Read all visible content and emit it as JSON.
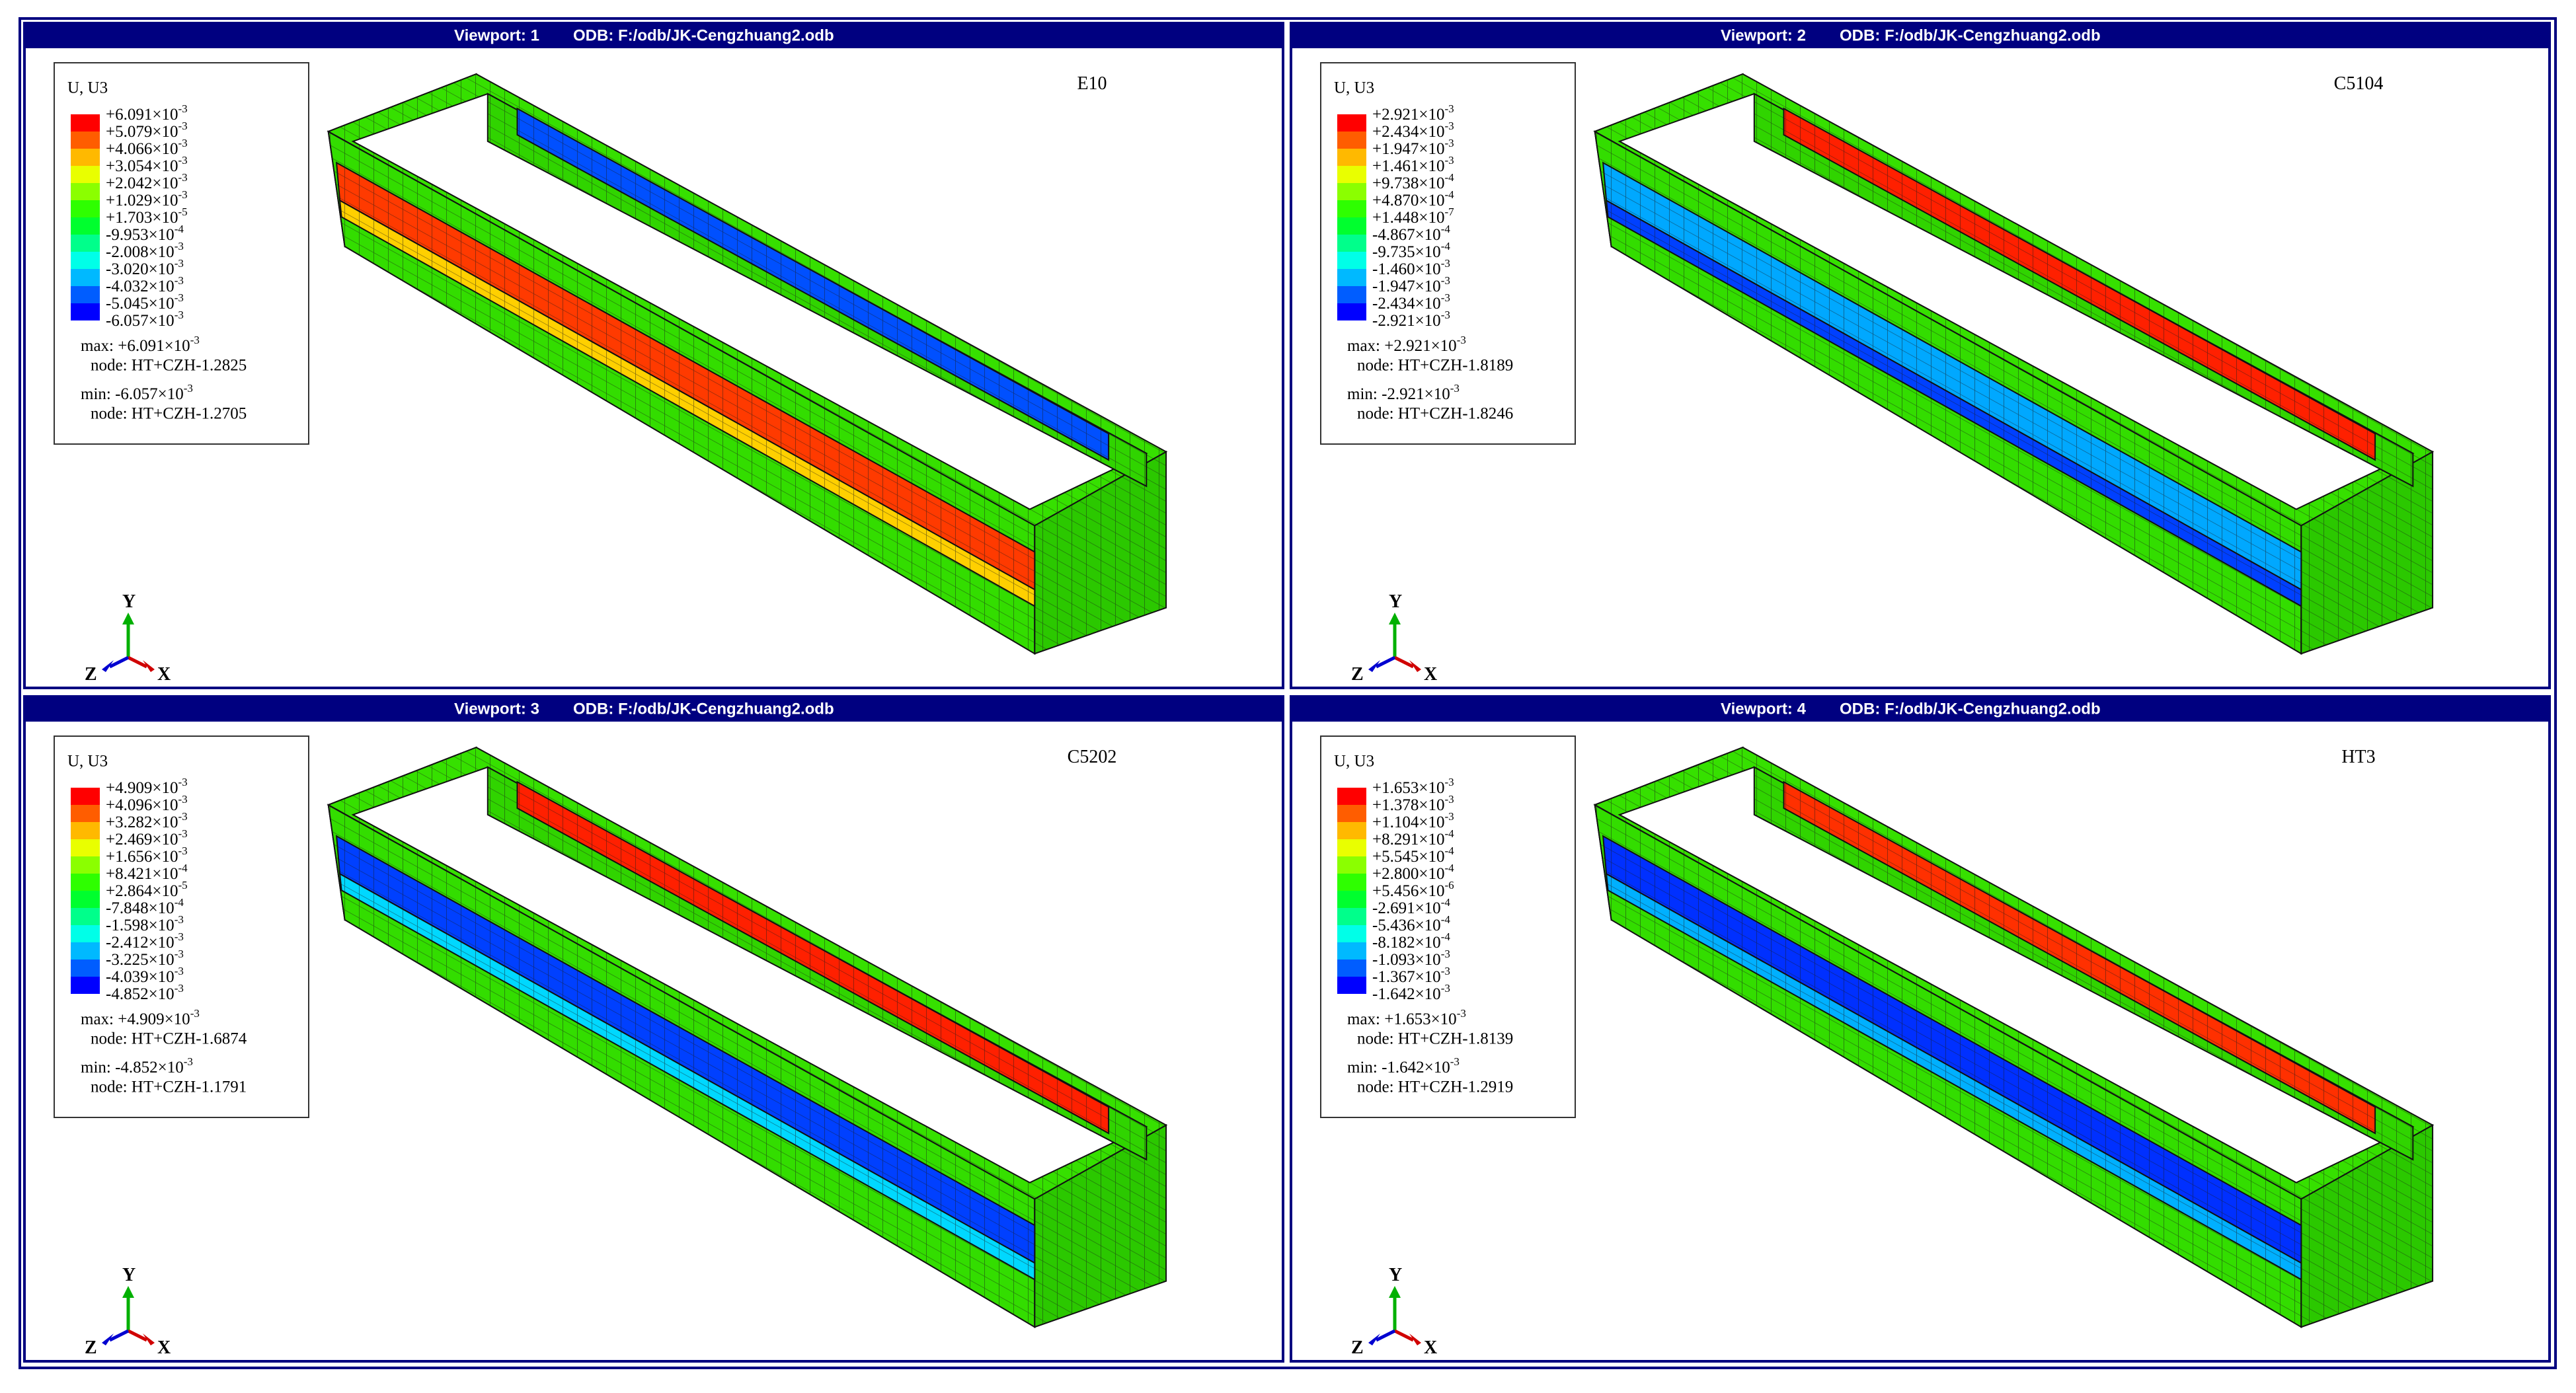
{
  "legend_colors": [
    "#ff0000",
    "#ff5d00",
    "#ffb900",
    "#e9ff00",
    "#8bff00",
    "#2eff00",
    "#00ff2e",
    "#00ff8b",
    "#00ffe8",
    "#00b9ff",
    "#005dff",
    "#0000ff"
  ],
  "triad": {
    "x": "X",
    "y": "Y",
    "z": "Z"
  },
  "viewports": [
    {
      "viewport": "Viewport: 1",
      "odb": "ODB: F:/odb/JK-Cengzhuang2.odb",
      "step": "E10",
      "legend_title": "U, U3",
      "legend_values": [
        {
          "m": "+6.091×10",
          "e": "-3"
        },
        {
          "m": "+5.079×10",
          "e": "-3"
        },
        {
          "m": "+4.066×10",
          "e": "-3"
        },
        {
          "m": "+3.054×10",
          "e": "-3"
        },
        {
          "m": "+2.042×10",
          "e": "-3"
        },
        {
          "m": "+1.029×10",
          "e": "-3"
        },
        {
          "m": "+1.703×10",
          "e": "-5"
        },
        {
          "m": "-9.953×10",
          "e": "-4"
        },
        {
          "m": "-2.008×10",
          "e": "-3"
        },
        {
          "m": "-3.020×10",
          "e": "-3"
        },
        {
          "m": "-4.032×10",
          "e": "-3"
        },
        {
          "m": "-5.045×10",
          "e": "-3"
        },
        {
          "m": "-6.057×10",
          "e": "-3"
        }
      ],
      "max": {
        "m": "max: +6.091×10",
        "e": "-3",
        "node": "node: HT+CZH-1.2825"
      },
      "min": {
        "m": "min: -6.057×10",
        "e": "-3",
        "node": "node: HT+CZH-1.2705"
      }
    },
    {
      "viewport": "Viewport: 2",
      "odb": "ODB: F:/odb/JK-Cengzhuang2.odb",
      "step": "C5104",
      "legend_title": "U, U3",
      "legend_values": [
        {
          "m": "+2.921×10",
          "e": "-3"
        },
        {
          "m": "+2.434×10",
          "e": "-3"
        },
        {
          "m": "+1.947×10",
          "e": "-3"
        },
        {
          "m": "+1.461×10",
          "e": "-3"
        },
        {
          "m": "+9.738×10",
          "e": "-4"
        },
        {
          "m": "+4.870×10",
          "e": "-4"
        },
        {
          "m": "+1.448×10",
          "e": "-7"
        },
        {
          "m": "-4.867×10",
          "e": "-4"
        },
        {
          "m": "-9.735×10",
          "e": "-4"
        },
        {
          "m": "-1.460×10",
          "e": "-3"
        },
        {
          "m": "-1.947×10",
          "e": "-3"
        },
        {
          "m": "-2.434×10",
          "e": "-3"
        },
        {
          "m": "-2.921×10",
          "e": "-3"
        }
      ],
      "max": {
        "m": "max: +2.921×10",
        "e": "-3",
        "node": "node: HT+CZH-1.8189"
      },
      "min": {
        "m": "min: -2.921×10",
        "e": "-3",
        "node": "node: HT+CZH-1.8246"
      }
    },
    {
      "viewport": "Viewport: 3",
      "odb": "ODB: F:/odb/JK-Cengzhuang2.odb",
      "step": "C5202",
      "legend_title": "U, U3",
      "legend_values": [
        {
          "m": "+4.909×10",
          "e": "-3"
        },
        {
          "m": "+4.096×10",
          "e": "-3"
        },
        {
          "m": "+3.282×10",
          "e": "-3"
        },
        {
          "m": "+2.469×10",
          "e": "-3"
        },
        {
          "m": "+1.656×10",
          "e": "-3"
        },
        {
          "m": "+8.421×10",
          "e": "-4"
        },
        {
          "m": "+2.864×10",
          "e": "-5"
        },
        {
          "m": "-7.848×10",
          "e": "-4"
        },
        {
          "m": "-1.598×10",
          "e": "-3"
        },
        {
          "m": "-2.412×10",
          "e": "-3"
        },
        {
          "m": "-3.225×10",
          "e": "-3"
        },
        {
          "m": "-4.039×10",
          "e": "-3"
        },
        {
          "m": "-4.852×10",
          "e": "-3"
        }
      ],
      "max": {
        "m": "max: +4.909×10",
        "e": "-3",
        "node": "node: HT+CZH-1.6874"
      },
      "min": {
        "m": "min: -4.852×10",
        "e": "-3",
        "node": "node: HT+CZH-1.1791"
      }
    },
    {
      "viewport": "Viewport: 4",
      "odb": "ODB: F:/odb/JK-Cengzhuang2.odb",
      "step": "HT3",
      "legend_title": "U, U3",
      "legend_values": [
        {
          "m": "+1.653×10",
          "e": "-3"
        },
        {
          "m": "+1.378×10",
          "e": "-3"
        },
        {
          "m": "+1.104×10",
          "e": "-3"
        },
        {
          "m": "+8.291×10",
          "e": "-4"
        },
        {
          "m": "+5.545×10",
          "e": "-4"
        },
        {
          "m": "+2.800×10",
          "e": "-4"
        },
        {
          "m": "+5.456×10",
          "e": "-6"
        },
        {
          "m": "-2.691×10",
          "e": "-4"
        },
        {
          "m": "-5.436×10",
          "e": "-4"
        },
        {
          "m": "-8.182×10",
          "e": "-4"
        },
        {
          "m": "-1.093×10",
          "e": "-3"
        },
        {
          "m": "-1.367×10",
          "e": "-3"
        },
        {
          "m": "-1.642×10",
          "e": "-3"
        }
      ],
      "max": {
        "m": "max: +1.653×10",
        "e": "-3",
        "node": "node: HT+CZH-1.8139"
      },
      "min": {
        "m": "min: -1.642×10",
        "e": "-3",
        "node": "node: HT+CZH-1.2919"
      }
    }
  ]
}
